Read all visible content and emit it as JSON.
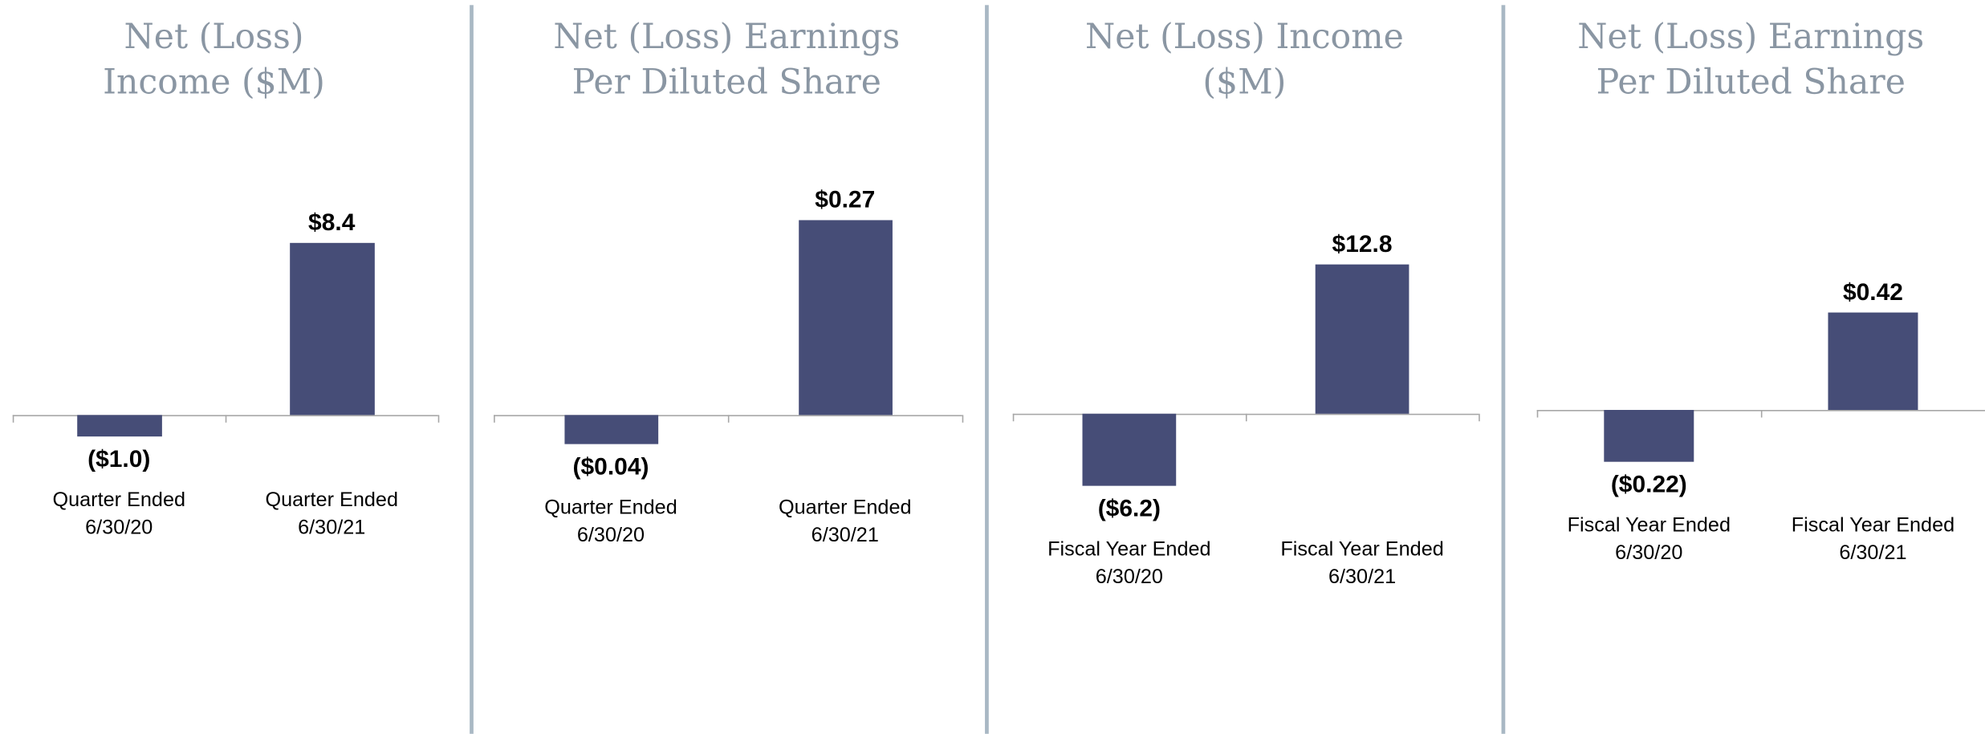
{
  "chart_data": [
    {
      "type": "bar",
      "title": "Net (Loss)\nIncome ($M)",
      "categories": [
        "Quarter Ended\n6/30/20",
        "Quarter Ended\n6/30/21"
      ],
      "values": [
        -1.0,
        8.4
      ],
      "value_labels": [
        "($1.0)",
        "$8.4"
      ],
      "color": "#464d77",
      "ylim": [
        -14.3,
        14.1
      ]
    },
    {
      "type": "bar",
      "title": "Net (Loss) Earnings\nPer Diluted Share",
      "categories": [
        "Quarter Ended\n6/30/20",
        "Quarter Ended\n6/30/21"
      ],
      "values": [
        -0.04,
        0.27
      ],
      "value_labels": [
        "($0.04)",
        "$0.27"
      ],
      "color": "#464d77",
      "ylim": [
        -0.407,
        0.4
      ]
    },
    {
      "type": "bar",
      "title": "Net (Loss) Income\n($M)",
      "categories": [
        "Fiscal Year Ended\n6/30/20",
        "Fiscal Year Ended\n6/30/21"
      ],
      "values": [
        -6.2,
        12.8
      ],
      "value_labels": [
        "($6.2)",
        "$12.8"
      ],
      "color": "#464d77",
      "ylim": [
        -25.3,
        24.7
      ]
    },
    {
      "type": "bar",
      "title": "Net (Loss) Earnings\nPer Diluted Share",
      "categories": [
        "Fiscal Year Ended\n6/30/20",
        "Fiscal Year Ended\n6/30/21"
      ],
      "values": [
        -0.22,
        0.42
      ],
      "value_labels": [
        "($0.22)",
        "$0.42"
      ],
      "color": "#464d77",
      "ylim": [
        -1.28,
        1.22
      ]
    }
  ]
}
